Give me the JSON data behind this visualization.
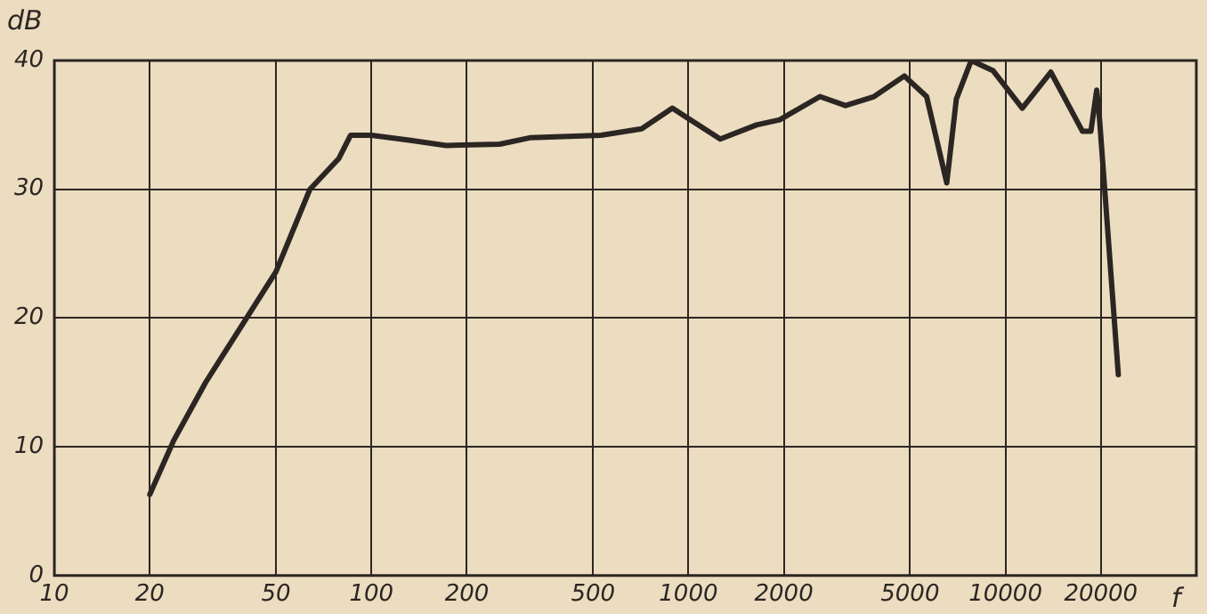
{
  "chart_data": {
    "type": "line",
    "xlabel": "f",
    "ylabel": "dB",
    "log": "x",
    "grid": true,
    "marker": "none",
    "line_style": "solid",
    "xlim": [
      10,
      40000
    ],
    "xticks": [
      10,
      20,
      50,
      100,
      200,
      500,
      1000,
      2000,
      5000,
      10000,
      20000
    ],
    "ylim": [
      0,
      40
    ],
    "yticks": [
      0,
      10,
      20,
      30,
      40
    ],
    "series": [
      {
        "color": "#2b2622",
        "x": [
          20,
          23.8,
          30,
          39.9,
          50,
          64,
          79,
          86,
          100,
          133,
          172,
          254,
          316,
          530,
          712,
          890,
          1260,
          1640,
          1940,
          2600,
          3130,
          3850,
          4800,
          5640,
          6530,
          7000,
          7800,
          9150,
          11300,
          13900,
          17500,
          18600,
          19400,
          19800,
          22700
        ],
        "values": [
          6.3,
          10.5,
          15,
          19.8,
          23.6,
          30,
          32.4,
          34.2,
          34.2,
          33.8,
          33.4,
          33.5,
          34,
          34.2,
          34.7,
          36.3,
          33.9,
          35,
          35.4,
          37.2,
          36.5,
          37.2,
          38.8,
          37.2,
          30.5,
          37,
          40,
          39.2,
          36.3,
          39.1,
          34.5,
          34.5,
          37.7,
          35.5,
          15.6
        ]
      }
    ]
  }
}
